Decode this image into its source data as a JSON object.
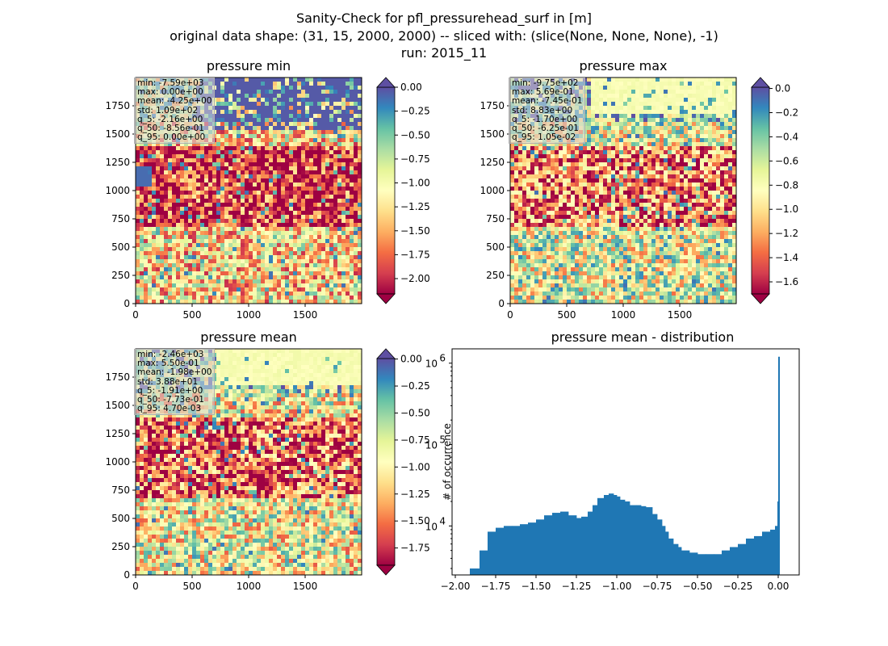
{
  "figure": {
    "title_line1": "Sanity-Check for pfl_pressurehead_surf in [m]",
    "title_line2": "original data shape: (31, 15, 2000, 2000) -- sliced with: (slice(None, None, None), -1)",
    "title_line3": "run: 2015_11"
  },
  "colormap": "Spectral",
  "chart_data": [
    {
      "type": "heatmap",
      "title": "pressure min",
      "x_ticks": [
        "0",
        "500",
        "1000",
        "1500"
      ],
      "y_ticks": [
        "0",
        "250",
        "500",
        "750",
        "1000",
        "1250",
        "1500",
        "1750"
      ],
      "xlim": [
        0,
        2000
      ],
      "ylim": [
        0,
        2000
      ],
      "colorbar": {
        "vmin": -2.16,
        "vmax": 0.0,
        "extend": "both",
        "ticks": [
          "0.00",
          "−0.25",
          "−0.50",
          "−0.75",
          "−1.00",
          "−1.25",
          "−1.50",
          "−1.75",
          "−2.00"
        ]
      },
      "stats": [
        "min: -7.59e+03",
        "max: 0.00e+00",
        "mean: -4.25e+00",
        "std: 1.09e+02",
        "q_5: -2.16e+00",
        "q_50: -8.56e-01",
        "q_95: 0.00e+00"
      ]
    },
    {
      "type": "heatmap",
      "title": "pressure max",
      "x_ticks": [
        "0",
        "500",
        "1000",
        "1500"
      ],
      "y_ticks": [
        "0",
        "250",
        "500",
        "750",
        "1000",
        "1250",
        "1500",
        "1750"
      ],
      "xlim": [
        0,
        2000
      ],
      "ylim": [
        0,
        2000
      ],
      "colorbar": {
        "vmin": -1.7,
        "vmax": 0.0105,
        "extend": "both",
        "ticks": [
          "0.0",
          "−0.2",
          "−0.4",
          "−0.6",
          "−0.8",
          "−1.0",
          "−1.2",
          "−1.4",
          "−1.6"
        ]
      },
      "stats": [
        "min: -9.75e+02",
        "max: 5.69e-01",
        "mean: -7.45e-01",
        "std: 8.83e+00",
        "q_5: -1.70e+00",
        "q_50: -6.25e-01",
        "q_95: 1.05e-02"
      ]
    },
    {
      "type": "heatmap",
      "title": "pressure mean",
      "x_ticks": [
        "0",
        "500",
        "1000",
        "1500"
      ],
      "y_ticks": [
        "0",
        "250",
        "500",
        "750",
        "1000",
        "1250",
        "1500",
        "1750"
      ],
      "xlim": [
        0,
        2000
      ],
      "ylim": [
        0,
        2000
      ],
      "colorbar": {
        "vmin": -1.91,
        "vmax": 0.0047,
        "extend": "both",
        "ticks": [
          "0.00",
          "−0.25",
          "−0.50",
          "−0.75",
          "−1.00",
          "−1.25",
          "−1.50",
          "−1.75"
        ]
      },
      "stats": [
        "min: -2.46e+03",
        "max: 5.50e-01",
        "mean: -1.98e+00",
        "std: 3.88e+01",
        "q_5: -1.91e+00",
        "q_50: -7.73e-01",
        "q_95: 4.70e-03"
      ]
    },
    {
      "type": "bar",
      "title": "pressure mean - distribution",
      "ylabel": "# of occurrence",
      "yscale": "log",
      "ylim": [
        2500,
        1500000
      ],
      "xlim": [
        -2.02,
        0.13
      ],
      "x_ticks": [
        "−2.00",
        "−1.75",
        "−1.50",
        "−1.25",
        "−1.00",
        "−0.75",
        "−0.50",
        "−0.25",
        "0.00"
      ],
      "y_ticks": [
        {
          "base": "10",
          "exp": "4"
        },
        {
          "base": "10",
          "exp": "5"
        },
        {
          "base": "10",
          "exp": "6"
        }
      ],
      "bar_color": "#1f77b4",
      "bins_x": [
        -1.91,
        -1.85,
        -1.8,
        -1.75,
        -1.7,
        -1.65,
        -1.6,
        -1.55,
        -1.5,
        -1.45,
        -1.4,
        -1.35,
        -1.3,
        -1.25,
        -1.22,
        -1.18,
        -1.15,
        -1.12,
        -1.08,
        -1.05,
        -1.02,
        -1.0,
        -0.98,
        -0.95,
        -0.92,
        -0.88,
        -0.85,
        -0.82,
        -0.78,
        -0.75,
        -0.72,
        -0.7,
        -0.68,
        -0.65,
        -0.62,
        -0.6,
        -0.55,
        -0.5,
        -0.45,
        -0.4,
        -0.35,
        -0.3,
        -0.25,
        -0.2,
        -0.15,
        -0.1,
        -0.05,
        -0.02,
        -0.005,
        0.0
      ],
      "bins_y": [
        3000,
        5000,
        8500,
        9500,
        10000,
        10000,
        10500,
        11000,
        12000,
        13500,
        14500,
        15000,
        13500,
        12500,
        13000,
        15000,
        18000,
        22000,
        24000,
        25000,
        24000,
        23000,
        21000,
        20000,
        18000,
        18000,
        17500,
        17000,
        14000,
        12000,
        10000,
        8500,
        7000,
        6000,
        5500,
        5000,
        4700,
        4500,
        4500,
        4500,
        5000,
        5500,
        6000,
        7000,
        7500,
        8500,
        9000,
        10000,
        20000,
        1200000
      ]
    }
  ]
}
